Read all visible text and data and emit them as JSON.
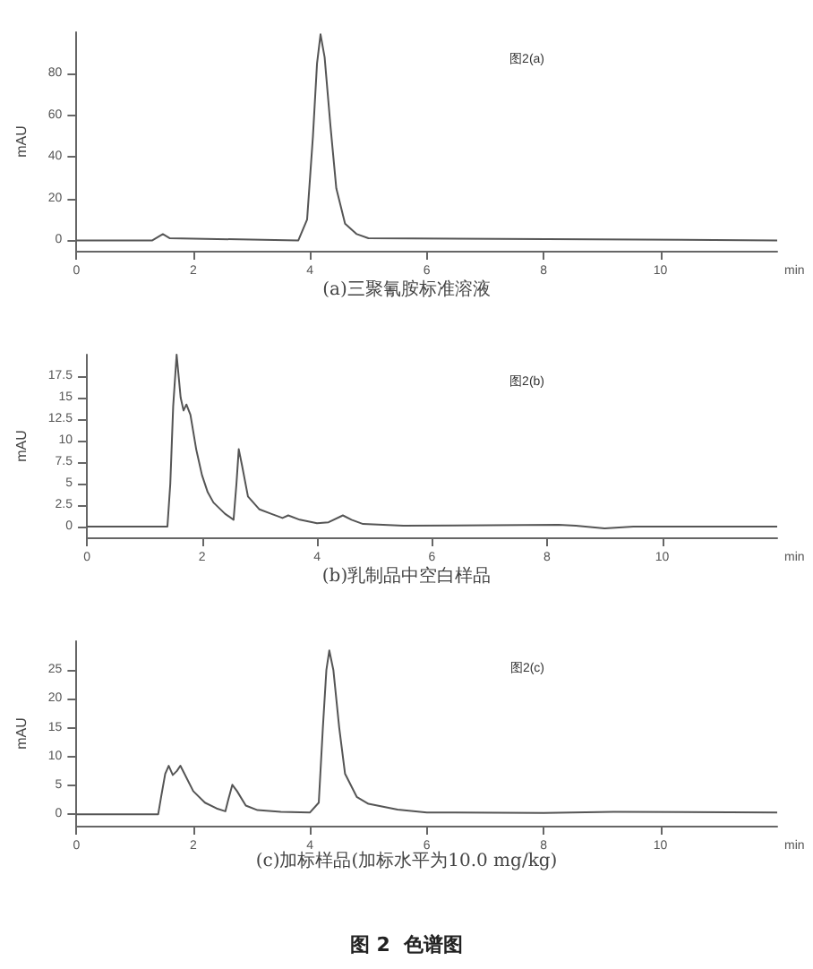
{
  "chart_data": [
    {
      "type": "line",
      "title": "(a)三聚氰胺标准溶液",
      "ylabel": "mAU",
      "annotations": [
        "图2(a)"
      ],
      "marker": "none",
      "grid": false,
      "line_style": "solid",
      "xlabel": "min",
      "xlim": [
        0,
        12
      ],
      "xticks": [
        0,
        2,
        4,
        6,
        8,
        10
      ],
      "ylim": [
        -5,
        100
      ],
      "yticks": [
        0,
        20,
        40,
        60,
        80
      ],
      "series": [
        {
          "color": "#555555",
          "x": [
            0,
            1.3,
            1.48,
            1.6,
            3.8,
            3.95,
            4.05,
            4.12,
            4.18,
            4.25,
            4.35,
            4.45,
            4.6,
            4.8,
            5.0,
            12
          ],
          "values": [
            0,
            0,
            3,
            1,
            0,
            10,
            50,
            85,
            99,
            88,
            55,
            25,
            8,
            3,
            1,
            0
          ]
        }
      ]
    },
    {
      "type": "line",
      "title": "(b)乳制品中空白样品",
      "ylabel": "mAU",
      "annotations": [
        "图2(b)"
      ],
      "marker": "none",
      "grid": false,
      "line_style": "solid",
      "xlabel": "min",
      "xlim": [
        0,
        12
      ],
      "xticks": [
        0,
        2,
        4,
        6,
        8,
        10
      ],
      "ylim": [
        -1.25,
        20
      ],
      "yticks": [
        0,
        2.5,
        5,
        7.5,
        10,
        12.5,
        15,
        17.5
      ],
      "series": [
        {
          "color": "#555555",
          "x": [
            0,
            1.4,
            1.45,
            1.5,
            1.56,
            1.63,
            1.68,
            1.73,
            1.8,
            1.9,
            2.0,
            2.1,
            2.2,
            2.4,
            2.55,
            2.6,
            2.64,
            2.7,
            2.8,
            3.0,
            3.2,
            3.4,
            3.5,
            3.7,
            4.0,
            4.2,
            4.45,
            4.6,
            4.8,
            5.5,
            8.2,
            8.5,
            9.0,
            9.5,
            12
          ],
          "values": [
            0,
            0,
            5,
            14,
            20,
            15,
            13.5,
            14.2,
            13,
            9,
            6,
            4,
            2.8,
            1.5,
            0.8,
            5,
            9,
            7,
            3.5,
            2,
            1.5,
            1,
            1.3,
            0.8,
            0.4,
            0.5,
            1.3,
            0.8,
            0.3,
            0.1,
            0.2,
            0.1,
            -0.2,
            0,
            0
          ]
        }
      ]
    },
    {
      "type": "line",
      "title": "(c)加标样品(加标水平为10.0 mg/kg)",
      "ylabel": "mAU",
      "annotations": [
        "图2(c)",
        "图 2  色谱图"
      ],
      "marker": "none",
      "grid": false,
      "line_style": "solid",
      "xlabel": "min",
      "xlim": [
        0,
        12
      ],
      "xticks": [
        0,
        2,
        4,
        6,
        8,
        10
      ],
      "ylim": [
        -2,
        30
      ],
      "yticks": [
        0,
        5,
        10,
        15,
        20,
        25
      ],
      "series": [
        {
          "color": "#555555",
          "x": [
            0,
            1.4,
            1.45,
            1.52,
            1.58,
            1.65,
            1.72,
            1.78,
            1.85,
            2.0,
            2.2,
            2.4,
            2.55,
            2.6,
            2.67,
            2.75,
            2.9,
            3.1,
            3.5,
            4.0,
            4.15,
            4.22,
            4.28,
            4.33,
            4.4,
            4.5,
            4.6,
            4.8,
            5.0,
            5.5,
            6.0,
            8.0,
            9.2,
            12
          ],
          "values": [
            0,
            0,
            3,
            7,
            8.4,
            6.8,
            7.5,
            8.4,
            7,
            4,
            2,
            1,
            0.5,
            2.5,
            5.1,
            4,
            1.5,
            0.7,
            0.4,
            0.3,
            2,
            15,
            25,
            28.4,
            25,
            15,
            7,
            3,
            1.8,
            0.8,
            0.3,
            0.2,
            0.4,
            0.3
          ]
        }
      ]
    }
  ]
}
